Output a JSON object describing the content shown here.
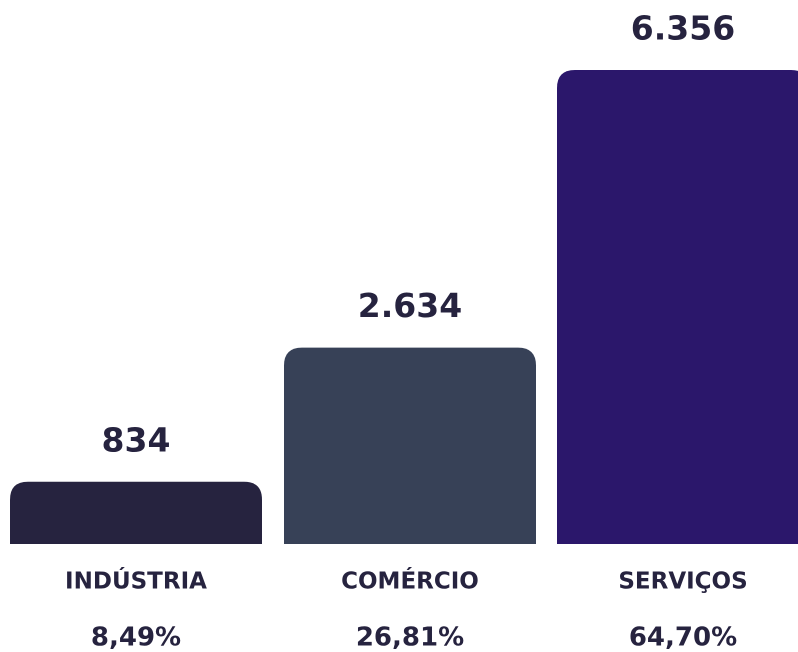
{
  "chart_data": {
    "type": "bar",
    "categories": [
      "INDÚSTRIA",
      "COMÉRCIO",
      "SERVIÇOS"
    ],
    "values": [
      834,
      2634,
      6356
    ],
    "value_labels": [
      "834",
      "2.634",
      "6.356"
    ],
    "shares": [
      8.49,
      26.81,
      64.7
    ],
    "share_labels": [
      "8,49%",
      "26,81%",
      "64,70%"
    ],
    "colors": [
      "#26233f",
      "#374157",
      "#2b176b"
    ]
  }
}
